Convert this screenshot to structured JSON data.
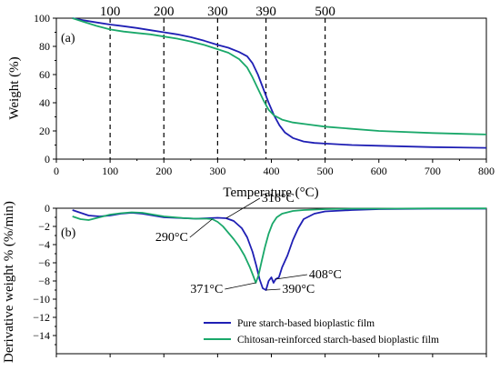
{
  "colors": {
    "pure": "#1f1fb4",
    "chitosan": "#1aa86a",
    "axis": "#000000",
    "guide": "#000000"
  },
  "chart_data": [
    {
      "type": "line",
      "panel_label": "(a)",
      "xlabel": "Temperature (°C)",
      "ylabel": "Weight (%)",
      "xlim": [
        0,
        800
      ],
      "ylim": [
        0,
        100
      ],
      "xticks": [
        0,
        100,
        200,
        300,
        400,
        500,
        600,
        700,
        800
      ],
      "yticks": [
        0,
        20,
        40,
        60,
        80,
        100
      ],
      "guide_lines": [
        100,
        200,
        300,
        390,
        500
      ],
      "guide_labels": [
        "100",
        "200",
        "300",
        "390",
        "500"
      ],
      "grid": false,
      "series": [
        {
          "name": "Pure starch-based bioplastic film",
          "color_key": "pure",
          "x": [
            30,
            50,
            75,
            100,
            125,
            150,
            175,
            200,
            225,
            250,
            275,
            300,
            320,
            340,
            355,
            365,
            375,
            385,
            395,
            405,
            415,
            425,
            440,
            460,
            480,
            500,
            550,
            600,
            700,
            800
          ],
          "y": [
            100,
            98.5,
            97,
            95.5,
            94.3,
            93,
            91.5,
            90,
            88.5,
            86.5,
            84,
            81,
            79,
            76,
            73,
            68,
            60,
            50,
            40,
            31,
            24,
            19,
            15,
            12.5,
            11.5,
            11,
            10,
            9.5,
            8.5,
            8
          ]
        },
        {
          "name": "Chitosan-reinforced starch-based bioplastic film",
          "color_key": "chitosan",
          "x": [
            30,
            50,
            75,
            100,
            125,
            150,
            175,
            200,
            225,
            250,
            275,
            300,
            320,
            340,
            355,
            365,
            375,
            385,
            395,
            405,
            420,
            440,
            470,
            500,
            550,
            600,
            700,
            800
          ],
          "y": [
            100,
            97.5,
            94.5,
            92,
            90.5,
            89.5,
            88.5,
            87,
            85.5,
            83.5,
            81,
            78,
            75.5,
            71,
            65,
            58,
            50,
            42,
            35,
            31,
            28,
            26,
            24.5,
            23,
            21.5,
            20,
            18.5,
            17.5
          ]
        }
      ]
    },
    {
      "type": "line",
      "panel_label": "(b)",
      "xlabel": "",
      "ylabel": "Derivative weight % (%/min)",
      "xlim": [
        0,
        800
      ],
      "ylim": [
        -16,
        0
      ],
      "yticks": [
        0,
        -2,
        -4,
        -6,
        -8,
        -10,
        -12,
        -14
      ],
      "grid": false,
      "legend_position": "bottom-right",
      "annotations": [
        {
          "text": "316°C",
          "x": 316,
          "y": -1.1,
          "label_x": 382,
          "label_y": 0.7
        },
        {
          "text": "290°C",
          "x": 290,
          "y": -1.2,
          "label_x": 245,
          "label_y": -3.6
        },
        {
          "text": "371°C",
          "x": 371,
          "y": -8.2,
          "label_x": 310,
          "label_y": -9.3
        },
        {
          "text": "390°C",
          "x": 390,
          "y": -9.0,
          "label_x": 420,
          "label_y": -9.3
        },
        {
          "text": "408°C",
          "x": 408,
          "y": -7.8,
          "label_x": 470,
          "label_y": -7.7
        }
      ],
      "series": [
        {
          "name": "Pure starch-based bioplastic film",
          "color_key": "pure",
          "x": [
            30,
            45,
            60,
            80,
            100,
            120,
            140,
            160,
            180,
            200,
            220,
            240,
            260,
            280,
            300,
            316,
            330,
            345,
            355,
            365,
            372,
            378,
            384,
            390,
            395,
            400,
            404,
            408,
            414,
            420,
            430,
            440,
            450,
            460,
            480,
            500,
            550,
            600,
            700,
            800
          ],
          "y": [
            -0.2,
            -0.5,
            -0.8,
            -0.9,
            -0.8,
            -0.6,
            -0.5,
            -0.6,
            -0.8,
            -1.0,
            -1.05,
            -1.1,
            -1.15,
            -1.1,
            -1.05,
            -1.1,
            -1.4,
            -2.2,
            -3.2,
            -4.8,
            -6.3,
            -7.8,
            -8.8,
            -9.0,
            -8.0,
            -7.6,
            -8.2,
            -7.8,
            -7.6,
            -6.5,
            -5.2,
            -3.5,
            -2.2,
            -1.2,
            -0.6,
            -0.35,
            -0.2,
            -0.1,
            -0.05,
            -0.05
          ]
        },
        {
          "name": "Chitosan-reinforced starch-based bioplastic film",
          "color_key": "chitosan",
          "x": [
            30,
            45,
            60,
            80,
            100,
            120,
            140,
            160,
            180,
            200,
            220,
            240,
            260,
            280,
            290,
            300,
            310,
            320,
            330,
            340,
            350,
            360,
            366,
            371,
            376,
            382,
            388,
            395,
            402,
            410,
            420,
            440,
            460,
            500,
            550,
            600,
            700,
            800
          ],
          "y": [
            -0.9,
            -1.2,
            -1.3,
            -1.0,
            -0.7,
            -0.55,
            -0.45,
            -0.5,
            -0.7,
            -0.9,
            -1.0,
            -1.1,
            -1.15,
            -1.15,
            -1.2,
            -1.5,
            -2.0,
            -2.7,
            -3.4,
            -4.2,
            -5.2,
            -6.5,
            -7.4,
            -8.2,
            -7.4,
            -5.8,
            -4.3,
            -2.8,
            -1.7,
            -1.0,
            -0.6,
            -0.3,
            -0.2,
            -0.1,
            -0.05,
            -0.05,
            -0.02,
            -0.02
          ]
        }
      ]
    }
  ]
}
